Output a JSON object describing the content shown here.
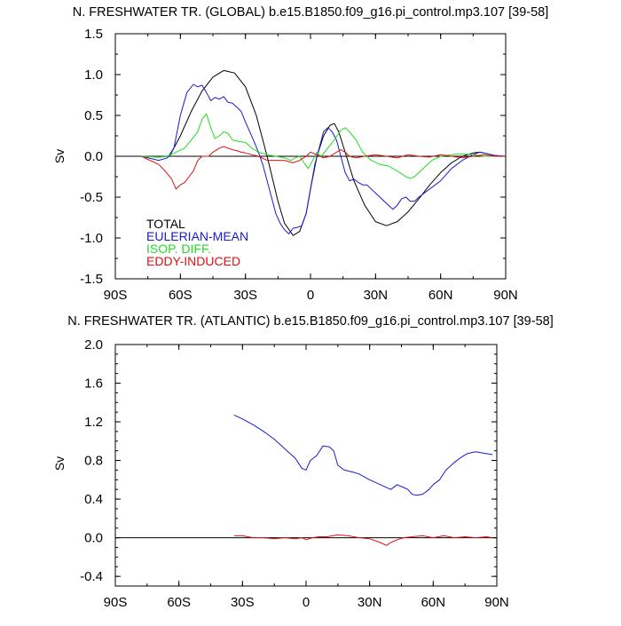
{
  "chart_data": [
    {
      "type": "line",
      "title": "N. FRESHWATER TR. (GLOBAL) b.e15.B1850.f09_g16.pi_control.mp3.107 [39-58]",
      "xlabel": "",
      "ylabel": "Sv",
      "xlim": [
        -90,
        90
      ],
      "ylim": [
        -1.5,
        1.5
      ],
      "x_ticks": [
        -90,
        -60,
        -30,
        0,
        30,
        60,
        90
      ],
      "x_tick_labels": [
        "90S",
        "60S",
        "30S",
        "0",
        "30N",
        "60N",
        "90N"
      ],
      "y_ticks": [
        -1.5,
        -1.0,
        -0.5,
        0.0,
        0.5,
        1.0,
        1.5
      ],
      "y_tick_labels": [
        "-1.5",
        "-1.0",
        "-0.5",
        "0.0",
        "0.5",
        "1.0",
        "1.5"
      ],
      "legend_position": "lower-left",
      "series": [
        {
          "name": "TOTAL",
          "color": "#000000",
          "x": [
            -78,
            -70,
            -65,
            -60,
            -55,
            -50,
            -45,
            -40,
            -35,
            -30,
            -25,
            -20,
            -15,
            -12,
            -8,
            -5,
            -2,
            0,
            3,
            6,
            9,
            11,
            13,
            16,
            20,
            25,
            30,
            35,
            40,
            45,
            50,
            55,
            60,
            65,
            70,
            75,
            78,
            80,
            85,
            90
          ],
          "values": [
            0.0,
            -0.01,
            0.0,
            0.25,
            0.55,
            0.8,
            0.97,
            1.05,
            1.02,
            0.85,
            0.5,
            0.0,
            -0.55,
            -0.82,
            -0.97,
            -0.92,
            -0.7,
            -0.4,
            0.0,
            0.25,
            0.38,
            0.4,
            0.3,
            0.05,
            -0.3,
            -0.6,
            -0.8,
            -0.85,
            -0.8,
            -0.68,
            -0.52,
            -0.35,
            -0.2,
            -0.08,
            0.0,
            0.04,
            0.05,
            0.04,
            0.01,
            0.0
          ]
        },
        {
          "name": "EULERIAN-MEAN",
          "color": "#1a1acc",
          "x": [
            -78,
            -70,
            -66,
            -63,
            -60,
            -57,
            -54,
            -52,
            -50,
            -48,
            -46,
            -44,
            -42,
            -40,
            -38,
            -36,
            -34,
            -32,
            -30,
            -28,
            -26,
            -24,
            -22,
            -20,
            -18,
            -16,
            -14,
            -12,
            -10,
            -8,
            -6,
            -4,
            -2,
            0,
            2,
            4,
            6,
            8,
            10,
            12,
            14,
            16,
            18,
            20,
            22,
            24,
            26,
            28,
            30,
            32,
            34,
            36,
            38,
            40,
            42,
            44,
            46,
            48,
            50,
            55,
            60,
            65,
            70,
            75,
            78,
            80,
            85,
            90
          ],
          "values": [
            0.0,
            -0.05,
            -0.02,
            0.1,
            0.5,
            0.78,
            0.88,
            0.85,
            0.87,
            0.78,
            0.68,
            0.72,
            0.7,
            0.73,
            0.66,
            0.65,
            0.6,
            0.55,
            0.42,
            0.3,
            0.18,
            0.05,
            -0.1,
            -0.3,
            -0.5,
            -0.7,
            -0.82,
            -0.9,
            -0.95,
            -0.88,
            -0.87,
            -0.85,
            -0.7,
            -0.4,
            -0.1,
            0.1,
            0.3,
            0.35,
            0.3,
            0.2,
            0.0,
            -0.2,
            -0.3,
            -0.28,
            -0.32,
            -0.35,
            -0.35,
            -0.4,
            -0.45,
            -0.5,
            -0.55,
            -0.6,
            -0.65,
            -0.6,
            -0.52,
            -0.5,
            -0.55,
            -0.55,
            -0.5,
            -0.4,
            -0.3,
            -0.15,
            -0.05,
            0.02,
            0.05,
            0.04,
            0.01,
            0.0
          ]
        },
        {
          "name": "ISOP. DIFF.",
          "color": "#22dd22",
          "x": [
            -78,
            -70,
            -66,
            -62,
            -58,
            -55,
            -52,
            -50,
            -48,
            -46,
            -44,
            -42,
            -40,
            -38,
            -36,
            -33,
            -30,
            -27,
            -24,
            -20,
            -16,
            -12,
            -9,
            -7,
            -5,
            -3,
            -1,
            1,
            3,
            5,
            8,
            11,
            14,
            16,
            18,
            21,
            24,
            28,
            32,
            36,
            40,
            44,
            46,
            48,
            52,
            56,
            60,
            65,
            70,
            75,
            80,
            85,
            90
          ],
          "values": [
            0.0,
            -0.01,
            0.0,
            0.05,
            0.1,
            0.2,
            0.3,
            0.45,
            0.52,
            0.35,
            0.22,
            0.25,
            0.3,
            0.28,
            0.2,
            0.18,
            0.17,
            0.1,
            0.05,
            0.02,
            0.0,
            -0.02,
            -0.05,
            -0.02,
            0.0,
            -0.08,
            -0.15,
            -0.05,
            0.05,
            0.0,
            0.1,
            0.2,
            0.32,
            0.35,
            0.3,
            0.2,
            0.05,
            -0.05,
            -0.1,
            -0.12,
            -0.18,
            -0.25,
            -0.27,
            -0.25,
            -0.15,
            -0.05,
            0.0,
            0.02,
            0.03,
            0.02,
            0.0,
            0.0,
            0.0
          ]
        },
        {
          "name": "EDDY-INDUCED",
          "color": "#dd1111",
          "x": [
            -78,
            -70,
            -67,
            -64,
            -62,
            -60,
            -58,
            -56,
            -54,
            -52,
            -50,
            -47,
            -45,
            -42,
            -40,
            -38,
            -36,
            -34,
            -32,
            -30,
            -27,
            -24,
            -20,
            -16,
            -12,
            -8,
            -5,
            -2,
            0,
            3,
            6,
            9,
            12,
            14,
            16,
            18,
            21,
            25,
            30,
            35,
            40,
            45,
            50,
            55,
            60,
            65,
            70,
            75,
            80,
            85,
            90
          ],
          "values": [
            0.0,
            -0.1,
            -0.18,
            -0.28,
            -0.4,
            -0.35,
            -0.32,
            -0.25,
            -0.18,
            -0.05,
            0.0,
            0.0,
            0.05,
            0.1,
            0.12,
            0.1,
            0.08,
            0.07,
            0.05,
            0.04,
            0.02,
            0.0,
            -0.05,
            -0.05,
            -0.05,
            -0.08,
            -0.05,
            0.0,
            0.05,
            0.02,
            -0.02,
            0.0,
            0.05,
            0.08,
            0.05,
            0.0,
            -0.02,
            0.0,
            0.02,
            0.0,
            -0.02,
            0.02,
            0.0,
            -0.01,
            0.02,
            0.0,
            -0.02,
            0.0,
            0.02,
            0.0,
            0.0
          ]
        }
      ]
    },
    {
      "type": "line",
      "title": "N. FRESHWATER TR. (ATLANTIC) b.e15.B1850.f09_g16.pi_control.mp3.107 [39-58]",
      "xlabel": "",
      "ylabel": "Sv",
      "xlim": [
        -90,
        90
      ],
      "ylim": [
        -0.5,
        2.0
      ],
      "x_ticks": [
        -90,
        -60,
        -30,
        0,
        30,
        60,
        90
      ],
      "x_tick_labels": [
        "90S",
        "60S",
        "30S",
        "0",
        "30N",
        "60N",
        "90N"
      ],
      "y_ticks": [
        -0.4,
        0.0,
        0.4,
        0.8,
        1.2,
        1.6,
        2.0
      ],
      "y_tick_labels": [
        "-0.4",
        "0.0",
        "0.4",
        "0.8",
        "1.2",
        "1.6",
        "2.0"
      ],
      "series": [
        {
          "name": "EULERIAN-MEAN",
          "color": "#1a1acc",
          "x": [
            -34,
            -30,
            -25,
            -20,
            -15,
            -10,
            -5,
            -2,
            0,
            2,
            5,
            8,
            11,
            13,
            15,
            18,
            22,
            25,
            30,
            35,
            40,
            43,
            46,
            48,
            50,
            52,
            55,
            58,
            60,
            63,
            66,
            70,
            73,
            76,
            80,
            85,
            88
          ],
          "values": [
            1.27,
            1.23,
            1.17,
            1.1,
            1.02,
            0.92,
            0.82,
            0.72,
            0.7,
            0.8,
            0.85,
            0.95,
            0.94,
            0.9,
            0.75,
            0.7,
            0.68,
            0.66,
            0.6,
            0.55,
            0.5,
            0.55,
            0.52,
            0.5,
            0.45,
            0.44,
            0.45,
            0.5,
            0.55,
            0.6,
            0.7,
            0.78,
            0.83,
            0.87,
            0.89,
            0.87,
            0.86
          ]
        },
        {
          "name": "EDDY-INDUCED",
          "color": "#dd1111",
          "x": [
            -34,
            -30,
            -25,
            -20,
            -15,
            -10,
            -5,
            -2,
            0,
            3,
            6,
            10,
            15,
            20,
            25,
            30,
            35,
            38,
            40,
            43,
            46,
            50,
            55,
            60,
            65,
            70,
            75,
            80,
            85,
            88
          ],
          "values": [
            0.02,
            0.02,
            0.0,
            0.0,
            -0.01,
            0.0,
            -0.01,
            0.0,
            -0.02,
            0.0,
            0.01,
            0.01,
            0.03,
            0.02,
            0.0,
            -0.01,
            -0.05,
            -0.08,
            -0.05,
            -0.02,
            0.0,
            0.01,
            0.02,
            0.0,
            0.02,
            0.0,
            0.01,
            0.0,
            0.01,
            0.0
          ]
        }
      ]
    }
  ]
}
